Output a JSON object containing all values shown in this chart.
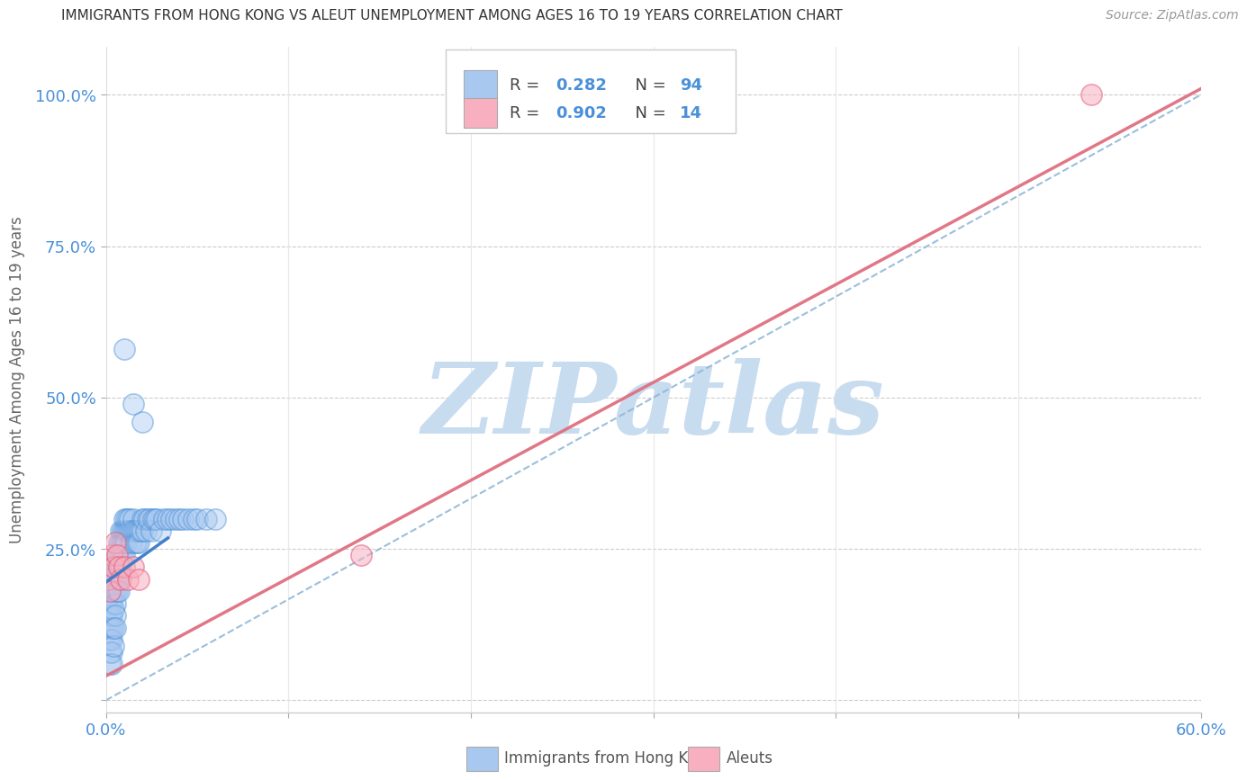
{
  "title": "IMMIGRANTS FROM HONG KONG VS ALEUT UNEMPLOYMENT AMONG AGES 16 TO 19 YEARS CORRELATION CHART",
  "source": "Source: ZipAtlas.com",
  "ylabel": "Unemployment Among Ages 16 to 19 years",
  "xlim": [
    0.0,
    0.6
  ],
  "ylim": [
    -0.02,
    1.08
  ],
  "ytick_positions": [
    0.0,
    0.25,
    0.5,
    0.75,
    1.0
  ],
  "yticklabels": [
    "",
    "25.0%",
    "50.0%",
    "75.0%",
    "100.0%"
  ],
  "blue_R": 0.282,
  "blue_N": 94,
  "pink_R": 0.902,
  "pink_N": 14,
  "blue_face_color": "#A8C8F0",
  "blue_edge_color": "#4A90D9",
  "pink_face_color": "#F8B0C0",
  "pink_edge_color": "#E06080",
  "blue_line_color": "#3A7AC8",
  "pink_line_color": "#E07080",
  "dash_line_color": "#90B8D8",
  "watermark": "ZIPatlas",
  "watermark_color": "#C8DCF0",
  "legend_label_blue": "Immigrants from Hong Kong",
  "legend_label_pink": "Aleuts",
  "background_color": "#FFFFFF",
  "grid_color": "#CCCCCC",
  "title_color": "#333333",
  "axis_label_color": "#666666",
  "tick_label_color": "#4A90D9",
  "blue_scatter_x": [
    0.001,
    0.001,
    0.001,
    0.001,
    0.002,
    0.002,
    0.002,
    0.002,
    0.002,
    0.002,
    0.002,
    0.003,
    0.003,
    0.003,
    0.003,
    0.003,
    0.003,
    0.003,
    0.003,
    0.004,
    0.004,
    0.004,
    0.004,
    0.004,
    0.004,
    0.005,
    0.005,
    0.005,
    0.005,
    0.005,
    0.005,
    0.006,
    0.006,
    0.006,
    0.006,
    0.007,
    0.007,
    0.007,
    0.007,
    0.007,
    0.008,
    0.008,
    0.008,
    0.008,
    0.009,
    0.009,
    0.009,
    0.01,
    0.01,
    0.01,
    0.01,
    0.011,
    0.011,
    0.011,
    0.012,
    0.012,
    0.013,
    0.013,
    0.014,
    0.014,
    0.015,
    0.015,
    0.016,
    0.016,
    0.017,
    0.017,
    0.018,
    0.018,
    0.019,
    0.02,
    0.02,
    0.021,
    0.022,
    0.023,
    0.024,
    0.025,
    0.026,
    0.027,
    0.028,
    0.03,
    0.032,
    0.034,
    0.036,
    0.038,
    0.04,
    0.042,
    0.045,
    0.048,
    0.05,
    0.055,
    0.06,
    0.01,
    0.015,
    0.02
  ],
  "blue_scatter_y": [
    0.15,
    0.17,
    0.12,
    0.1,
    0.18,
    0.16,
    0.14,
    0.12,
    0.1,
    0.08,
    0.06,
    0.2,
    0.18,
    0.16,
    0.14,
    0.12,
    0.1,
    0.08,
    0.06,
    0.22,
    0.2,
    0.18,
    0.15,
    0.12,
    0.09,
    0.22,
    0.2,
    0.18,
    0.16,
    0.14,
    0.12,
    0.24,
    0.22,
    0.2,
    0.18,
    0.26,
    0.24,
    0.22,
    0.2,
    0.18,
    0.28,
    0.26,
    0.24,
    0.22,
    0.28,
    0.26,
    0.24,
    0.3,
    0.28,
    0.26,
    0.24,
    0.3,
    0.28,
    0.26,
    0.3,
    0.28,
    0.3,
    0.28,
    0.28,
    0.26,
    0.3,
    0.28,
    0.28,
    0.26,
    0.28,
    0.26,
    0.28,
    0.26,
    0.28,
    0.3,
    0.28,
    0.3,
    0.28,
    0.3,
    0.3,
    0.28,
    0.3,
    0.3,
    0.3,
    0.28,
    0.3,
    0.3,
    0.3,
    0.3,
    0.3,
    0.3,
    0.3,
    0.3,
    0.3,
    0.3,
    0.3,
    0.58,
    0.49,
    0.46
  ],
  "pink_scatter_x": [
    0.001,
    0.002,
    0.003,
    0.004,
    0.005,
    0.006,
    0.007,
    0.008,
    0.01,
    0.012,
    0.015,
    0.018,
    0.14,
    0.54
  ],
  "pink_scatter_y": [
    0.2,
    0.18,
    0.24,
    0.22,
    0.26,
    0.24,
    0.22,
    0.2,
    0.22,
    0.2,
    0.22,
    0.2,
    0.24,
    1.0
  ],
  "blue_trendline": [
    0.0,
    0.034,
    0.195,
    0.268
  ],
  "pink_trendline": [
    0.0,
    0.6,
    0.04,
    1.01
  ],
  "dash_trendline": [
    0.0,
    0.6,
    0.0,
    1.0
  ]
}
